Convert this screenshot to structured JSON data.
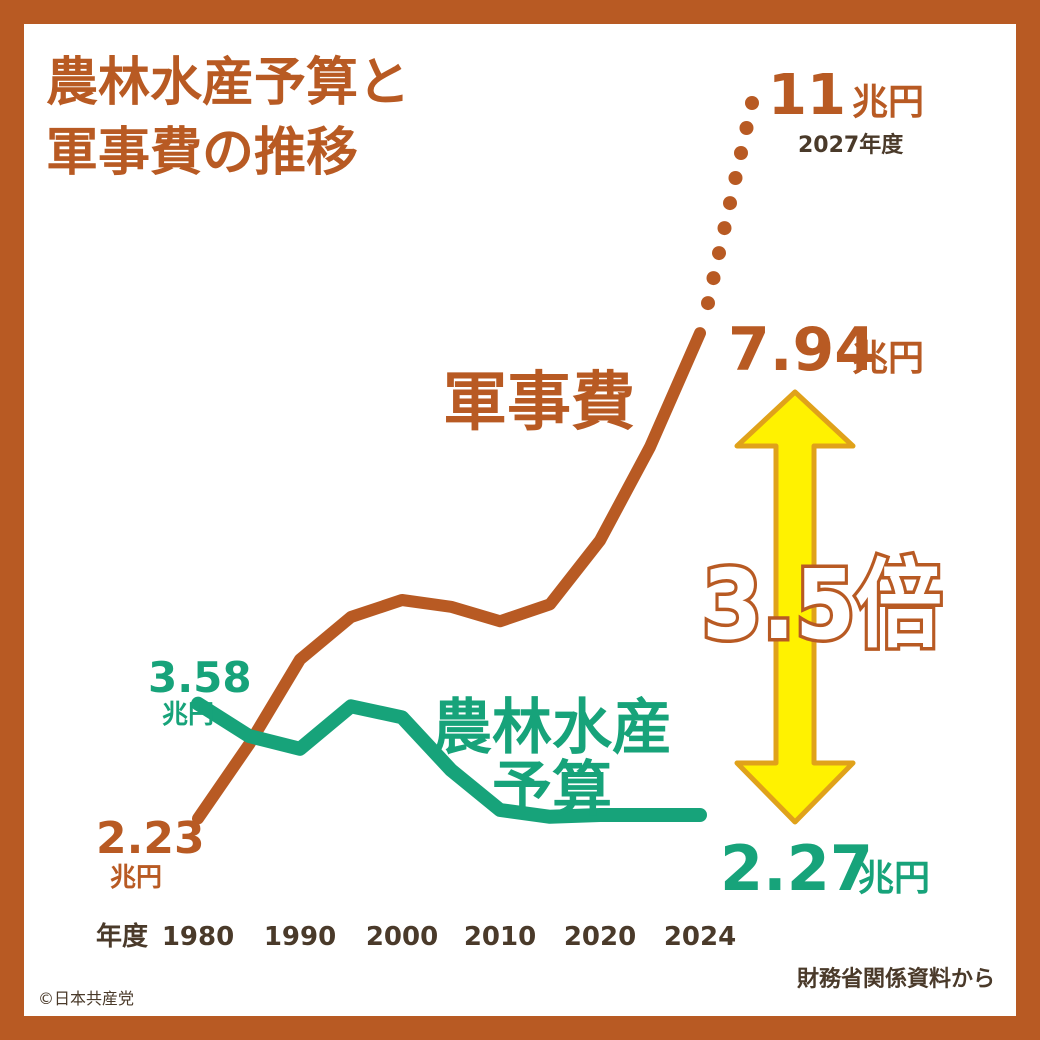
{
  "colors": {
    "frame": "#b85a23",
    "military": "#b85a23",
    "agriculture": "#17a37a",
    "arrow_fill": "#fff200",
    "arrow_stroke": "#e0a21a",
    "text_dark": "#4a3a2a"
  },
  "title_lines": [
    "農林水産予算と",
    "軍事費の推移"
  ],
  "chart_data": {
    "type": "line",
    "title": "農林水産予算と軍事費の推移",
    "x_axis_label": "年度",
    "x_ticks": [
      "1980",
      "1990",
      "2000",
      "2010",
      "2020",
      "2024"
    ],
    "series": [
      {
        "name": "軍事費",
        "values": [
          [
            1980,
            2.23
          ],
          [
            1985,
            3.1
          ],
          [
            1990,
            4.1
          ],
          [
            1995,
            4.6
          ],
          [
            2000,
            4.8
          ],
          [
            2005,
            4.72
          ],
          [
            2010,
            4.55
          ],
          [
            2015,
            4.75
          ],
          [
            2020,
            5.5
          ],
          [
            2022,
            6.6
          ],
          [
            2024,
            7.94
          ]
        ],
        "projection": [
          [
            2024,
            7.94
          ],
          [
            2027,
            11
          ]
        ]
      },
      {
        "name": "農林水産予算",
        "values": [
          [
            1980,
            3.58
          ],
          [
            1985,
            3.2
          ],
          [
            1990,
            3.05
          ],
          [
            1995,
            3.55
          ],
          [
            2000,
            3.42
          ],
          [
            2005,
            2.8
          ],
          [
            2010,
            2.33
          ],
          [
            2015,
            2.25
          ],
          [
            2020,
            2.27
          ],
          [
            2024,
            2.27
          ]
        ]
      }
    ],
    "ylim": [
      0,
      11.5
    ],
    "unit": "兆円"
  },
  "labels": {
    "military_series": "軍事費",
    "agri_series_line1": "農林水産",
    "agri_series_line2": "予算",
    "ratio": "3.5倍",
    "mil_start_value": "2.23",
    "mil_start_unit": "兆円",
    "agri_start_value": "3.58",
    "agri_start_unit": "兆円",
    "mil_end_value": "7.94",
    "mil_end_unit": "兆円",
    "agri_end_value": "2.27",
    "agri_end_unit": "兆円",
    "projection_value": "11",
    "projection_unit": "兆円",
    "projection_year": "2027年度"
  },
  "footer": {
    "source": "財務省関係資料から",
    "copyright": "©日本共産党"
  }
}
